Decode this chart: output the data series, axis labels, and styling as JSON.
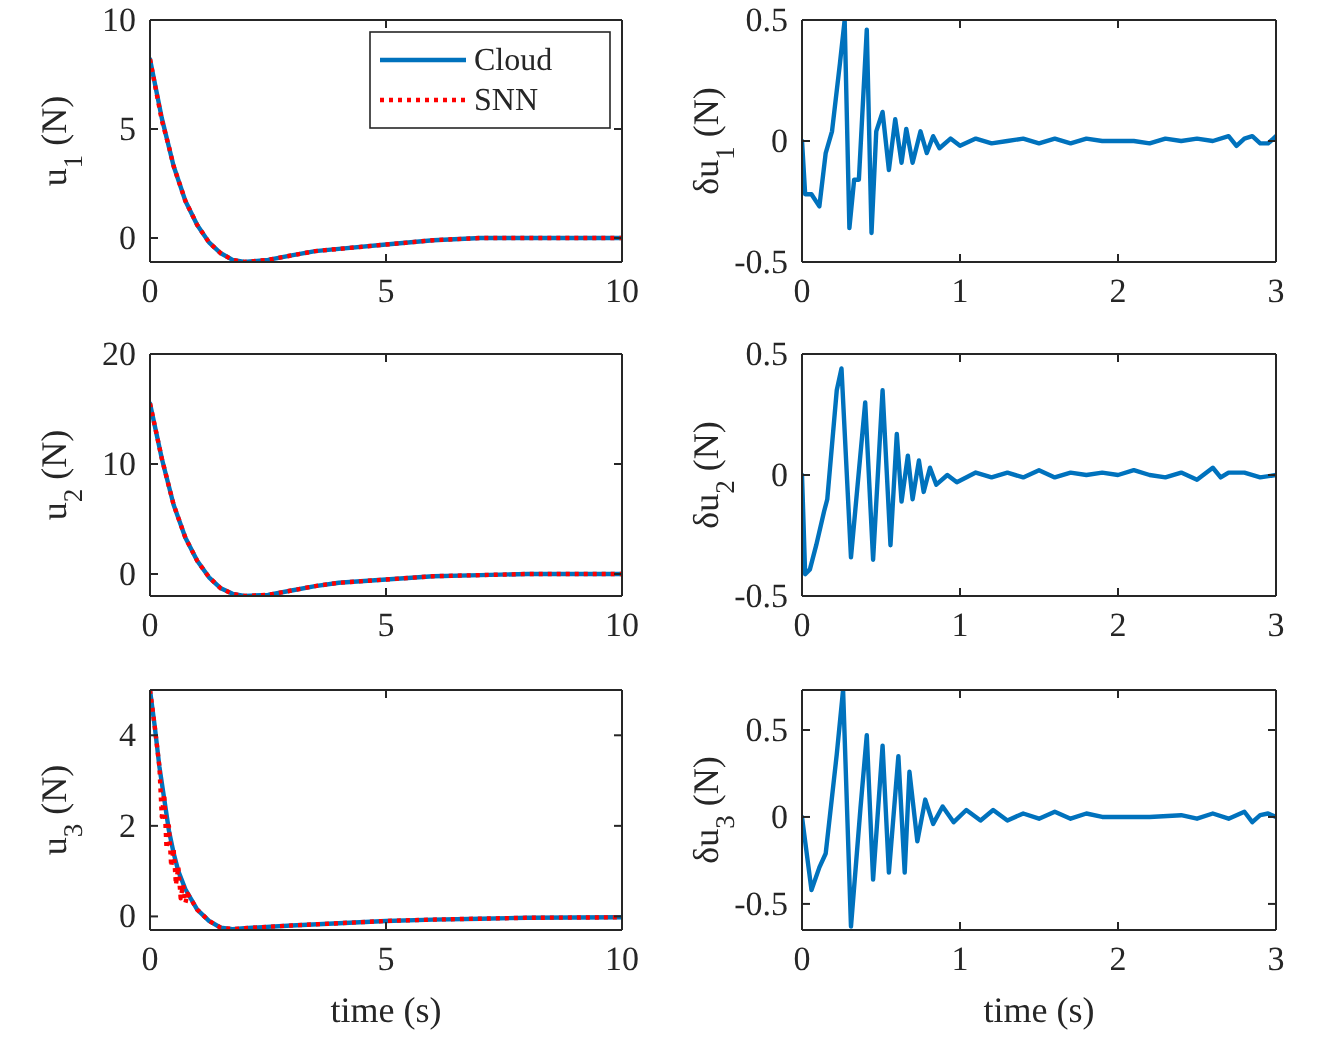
{
  "chart_data": [
    {
      "type": "line",
      "ylabel": "u$_{1}$ (N)",
      "xlim": [
        0,
        10
      ],
      "xticks": [
        0,
        5,
        10
      ],
      "ylim": [
        -1.1,
        10
      ],
      "yticks": [
        0,
        5,
        10
      ],
      "legend": "top right",
      "series": [
        {
          "name": "Cloud",
          "color": "#0072bd",
          "line_style": "solid",
          "x": [
            0,
            0.25,
            0.5,
            0.75,
            1,
            1.25,
            1.5,
            1.75,
            2,
            2.5,
            3,
            3.5,
            4,
            5,
            6,
            7,
            8,
            10
          ],
          "values": [
            8.2,
            5.5,
            3.3,
            1.7,
            0.6,
            -0.2,
            -0.7,
            -1.0,
            -1.1,
            -1.0,
            -0.8,
            -0.6,
            -0.5,
            -0.3,
            -0.1,
            0,
            0,
            0
          ]
        },
        {
          "name": "SNN",
          "color": "#ff0000",
          "line_style": "dotted",
          "x": [
            0,
            0.25,
            0.4,
            0.5,
            0.75,
            1,
            1.25,
            1.5,
            1.75,
            2,
            2.5,
            3,
            3.5,
            4,
            5,
            6,
            7,
            8,
            10
          ],
          "values": [
            8.2,
            5.4,
            4.2,
            3.3,
            1.7,
            0.6,
            -0.2,
            -0.7,
            -1.0,
            -1.1,
            -1.0,
            -0.8,
            -0.6,
            -0.5,
            -0.3,
            -0.1,
            0,
            0,
            0
          ]
        }
      ]
    },
    {
      "type": "line",
      "ylabel": "δu$_{1}$ (N)",
      "xlim": [
        0,
        3
      ],
      "xticks": [
        0,
        1,
        2,
        3
      ],
      "ylim": [
        -0.5,
        0.5
      ],
      "yticks": [
        -0.5,
        0,
        0.5
      ],
      "series": [
        {
          "color": "#0072bd",
          "line_style": "solid",
          "x": [
            0,
            0.02,
            0.06,
            0.11,
            0.15,
            0.19,
            0.24,
            0.27,
            0.3,
            0.33,
            0.36,
            0.41,
            0.44,
            0.47,
            0.51,
            0.55,
            0.59,
            0.63,
            0.66,
            0.7,
            0.75,
            0.79,
            0.83,
            0.87,
            0.94,
            1,
            1.1,
            1.2,
            1.3,
            1.4,
            1.5,
            1.6,
            1.7,
            1.8,
            1.9,
            2,
            2.1,
            2.2,
            2.3,
            2.4,
            2.5,
            2.6,
            2.7,
            2.75,
            2.8,
            2.85,
            2.9,
            2.95,
            3
          ],
          "values": [
            0,
            -0.22,
            -0.22,
            -0.27,
            -0.05,
            0.04,
            0.32,
            0.5,
            -0.36,
            -0.16,
            -0.16,
            0.46,
            -0.38,
            0.04,
            0.12,
            -0.12,
            0.09,
            -0.09,
            0.05,
            -0.09,
            0.04,
            -0.05,
            0.02,
            -0.03,
            0.01,
            -0.02,
            0.01,
            -0.01,
            0,
            0.01,
            -0.01,
            0.01,
            -0.01,
            0.01,
            0,
            0,
            0,
            -0.01,
            0.01,
            0,
            0.01,
            0,
            0.02,
            -0.02,
            0.01,
            0.02,
            -0.01,
            -0.01,
            0.02
          ]
        }
      ]
    },
    {
      "type": "line",
      "ylabel": "u$_{2}$ (N)",
      "xlim": [
        0,
        10
      ],
      "xticks": [
        0,
        5,
        10
      ],
      "ylim": [
        -2,
        20
      ],
      "yticks": [
        0,
        10,
        20
      ],
      "series": [
        {
          "color": "#0072bd",
          "line_style": "solid",
          "x": [
            0,
            0.25,
            0.5,
            0.75,
            1,
            1.25,
            1.5,
            1.75,
            2,
            2.5,
            3,
            3.5,
            4,
            5,
            6,
            7,
            8,
            10
          ],
          "values": [
            15.5,
            10.5,
            6.3,
            3.3,
            1.2,
            -0.3,
            -1.3,
            -1.8,
            -2.0,
            -1.9,
            -1.5,
            -1.1,
            -0.8,
            -0.5,
            -0.2,
            -0.1,
            0,
            0
          ]
        },
        {
          "color": "#ff0000",
          "line_style": "dotted",
          "x": [
            0,
            0.25,
            0.5,
            0.75,
            1,
            1.25,
            1.5,
            1.75,
            2,
            2.5,
            3,
            3.5,
            4,
            5,
            6,
            7,
            8,
            10
          ],
          "values": [
            15.5,
            10.5,
            6.3,
            3.3,
            1.2,
            -0.3,
            -1.3,
            -1.8,
            -2.0,
            -1.9,
            -1.5,
            -1.1,
            -0.8,
            -0.5,
            -0.2,
            -0.1,
            0,
            0
          ]
        }
      ]
    },
    {
      "type": "line",
      "ylabel": "δu$_{2}$ (N)",
      "xlim": [
        0,
        3
      ],
      "xticks": [
        0,
        1,
        2,
        3
      ],
      "ylim": [
        -0.5,
        0.5
      ],
      "yticks": [
        -0.5,
        0,
        0.5
      ],
      "series": [
        {
          "color": "#0072bd",
          "line_style": "solid",
          "x": [
            0,
            0.02,
            0.05,
            0.09,
            0.14,
            0.16,
            0.22,
            0.25,
            0.31,
            0.4,
            0.45,
            0.51,
            0.56,
            0.6,
            0.63,
            0.67,
            0.7,
            0.74,
            0.77,
            0.81,
            0.85,
            0.92,
            0.98,
            1.1,
            1.2,
            1.3,
            1.4,
            1.5,
            1.6,
            1.7,
            1.8,
            1.9,
            2,
            2.1,
            2.2,
            2.3,
            2.4,
            2.5,
            2.6,
            2.65,
            2.7,
            2.8,
            2.9,
            3
          ],
          "values": [
            0,
            -0.41,
            -0.39,
            -0.29,
            -0.15,
            -0.1,
            0.35,
            0.44,
            -0.34,
            0.3,
            -0.35,
            0.35,
            -0.29,
            0.17,
            -0.11,
            0.08,
            -0.1,
            0.06,
            -0.07,
            0.03,
            -0.04,
            0,
            -0.03,
            0.01,
            -0.01,
            0.01,
            -0.01,
            0.02,
            -0.01,
            0.01,
            0,
            0.01,
            0,
            0.02,
            0,
            -0.01,
            0.01,
            -0.02,
            0.03,
            -0.01,
            0.01,
            0.01,
            -0.01,
            0
          ]
        }
      ]
    },
    {
      "type": "line",
      "ylabel": "u$_{3}$ (N)",
      "xlabel": "time (s)",
      "xlim": [
        0,
        10
      ],
      "xticks": [
        0,
        5,
        10
      ],
      "ylim": [
        -0.3,
        5
      ],
      "yticks": [
        0,
        2,
        4
      ],
      "series": [
        {
          "color": "#0072bd",
          "line_style": "solid",
          "x": [
            0,
            0.1,
            0.2,
            0.3,
            0.4,
            0.5,
            0.6,
            0.75,
            1,
            1.25,
            1.5,
            1.75,
            2,
            3,
            4,
            5,
            6,
            7,
            8,
            10
          ],
          "values": [
            5,
            4.2,
            3.3,
            2.6,
            1.9,
            1.4,
            1.0,
            0.6,
            0.15,
            -0.1,
            -0.25,
            -0.28,
            -0.26,
            -0.2,
            -0.15,
            -0.1,
            -0.07,
            -0.05,
            -0.03,
            -0.02
          ]
        },
        {
          "color": "#ff0000",
          "line_style": "dotted",
          "x": [
            0,
            0.1,
            0.2,
            0.25,
            0.3,
            0.35,
            0.4,
            0.45,
            0.5,
            0.55,
            0.6,
            0.65,
            0.7,
            0.75,
            0.8,
            1,
            1.25,
            1.5,
            1.75,
            2,
            3,
            4,
            5,
            6,
            7,
            8,
            10
          ],
          "values": [
            5,
            4.2,
            3.3,
            2.2,
            2.7,
            1.5,
            2.0,
            1.1,
            1.5,
            0.7,
            1.1,
            0.4,
            0.7,
            0.3,
            0.5,
            0.15,
            -0.1,
            -0.25,
            -0.28,
            -0.26,
            -0.2,
            -0.15,
            -0.1,
            -0.07,
            -0.05,
            -0.03,
            -0.02
          ]
        }
      ]
    },
    {
      "type": "line",
      "ylabel": "δu$_{3}$ (N)",
      "xlabel": "time (s)",
      "xlim": [
        0,
        3
      ],
      "xticks": [
        0,
        1,
        2,
        3
      ],
      "ylim": [
        -0.65,
        0.73
      ],
      "yticks": [
        -0.5,
        0,
        0.5
      ],
      "series": [
        {
          "color": "#0072bd",
          "line_style": "solid",
          "x": [
            0,
            0.06,
            0.11,
            0.15,
            0.22,
            0.26,
            0.31,
            0.37,
            0.41,
            0.45,
            0.51,
            0.55,
            0.61,
            0.65,
            0.68,
            0.73,
            0.78,
            0.83,
            0.89,
            0.96,
            1.04,
            1.13,
            1.21,
            1.3,
            1.4,
            1.5,
            1.6,
            1.7,
            1.8,
            1.9,
            2,
            2.2,
            2.4,
            2.5,
            2.6,
            2.7,
            2.8,
            2.85,
            2.9,
            2.95,
            3
          ],
          "values": [
            0,
            -0.42,
            -0.29,
            -0.21,
            0.36,
            0.73,
            -0.63,
            0.05,
            0.47,
            -0.36,
            0.41,
            -0.32,
            0.35,
            -0.32,
            0.26,
            -0.14,
            0.1,
            -0.04,
            0.06,
            -0.03,
            0.04,
            -0.02,
            0.04,
            -0.02,
            0.02,
            -0.01,
            0.03,
            -0.01,
            0.02,
            0,
            0,
            0,
            0.01,
            -0.01,
            0.02,
            -0.01,
            0.03,
            -0.03,
            0.01,
            0.02,
            0
          ]
        }
      ]
    }
  ]
}
